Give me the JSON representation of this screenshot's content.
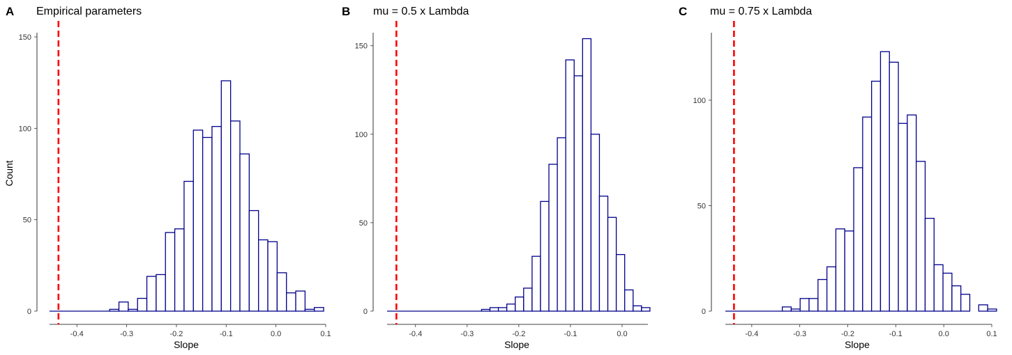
{
  "chart_data": [
    {
      "type": "bar",
      "panel_tag": "A",
      "title": "Empirical parameters",
      "xlabel": "Slope",
      "ylabel": "Count",
      "xlim": [
        -0.455,
        0.1
      ],
      "ylim": [
        0,
        150
      ],
      "xticks": [
        -0.4,
        -0.3,
        -0.2,
        -0.1,
        0.0,
        0.1
      ],
      "xtick_labels": [
        "-0.4",
        "-0.3",
        "-0.2",
        "-0.1",
        "0.0",
        "0.1"
      ],
      "yticks": [
        0,
        50,
        100,
        150
      ],
      "ytick_labels": [
        "0",
        "50",
        "100",
        "150"
      ],
      "reference_line_x": -0.437,
      "bin_start": -0.3342,
      "bin_width": 0.0187,
      "values": [
        1,
        5,
        1,
        7,
        19,
        20,
        43,
        45,
        71,
        99,
        95,
        101,
        126,
        104,
        86,
        55,
        39,
        38,
        21,
        10,
        11,
        1,
        2
      ],
      "colors": {
        "bar_outline": "#00008b",
        "bar_fill": "#ffffff",
        "reference_line": "#ff0000"
      }
    },
    {
      "type": "bar",
      "panel_tag": "B",
      "title": "mu = 0.5 x Lambda",
      "xlabel": "Slope",
      "ylabel": "",
      "xlim": [
        -0.455,
        0.05
      ],
      "ylim": [
        0,
        155
      ],
      "xticks": [
        -0.4,
        -0.3,
        -0.2,
        -0.1,
        0.0
      ],
      "xtick_labels": [
        "-0.4",
        "-0.3",
        "-0.2",
        "-0.1",
        "0.0"
      ],
      "yticks": [
        0,
        50,
        100,
        150
      ],
      "ytick_labels": [
        "0",
        "50",
        "100",
        "150"
      ],
      "reference_line_x": -0.437,
      "bin_start": -0.2721,
      "bin_width": 0.0163,
      "values": [
        1,
        2,
        2,
        4,
        8,
        13,
        31,
        62,
        83,
        98,
        142,
        133,
        154,
        100,
        65,
        53,
        32,
        12,
        3,
        2
      ],
      "colors": {
        "bar_outline": "#00008b",
        "bar_fill": "#ffffff",
        "reference_line": "#ff0000"
      }
    },
    {
      "type": "bar",
      "panel_tag": "C",
      "title": "mu = 0.75 x Lambda",
      "xlabel": "Slope",
      "ylabel": "",
      "xlim": [
        -0.455,
        0.1
      ],
      "ylim": [
        0,
        130
      ],
      "xticks": [
        -0.4,
        -0.3,
        -0.2,
        -0.1,
        0.0,
        0.1
      ],
      "xtick_labels": [
        "-0.4",
        "-0.3",
        "-0.2",
        "-0.1",
        "0.0",
        "0.1"
      ],
      "yticks": [
        0,
        50,
        100
      ],
      "ytick_labels": [
        "0",
        "50",
        "100"
      ],
      "reference_line_x": -0.437,
      "bin_start": -0.3364,
      "bin_width": 0.0186,
      "values": [
        2,
        1,
        6,
        6,
        15,
        21,
        39,
        38,
        68,
        92,
        109,
        123,
        118,
        89,
        93,
        71,
        44,
        22,
        18,
        12,
        8,
        0,
        3,
        1
      ],
      "colors": {
        "bar_outline": "#00008b",
        "bar_fill": "#ffffff",
        "reference_line": "#ff0000"
      }
    }
  ]
}
